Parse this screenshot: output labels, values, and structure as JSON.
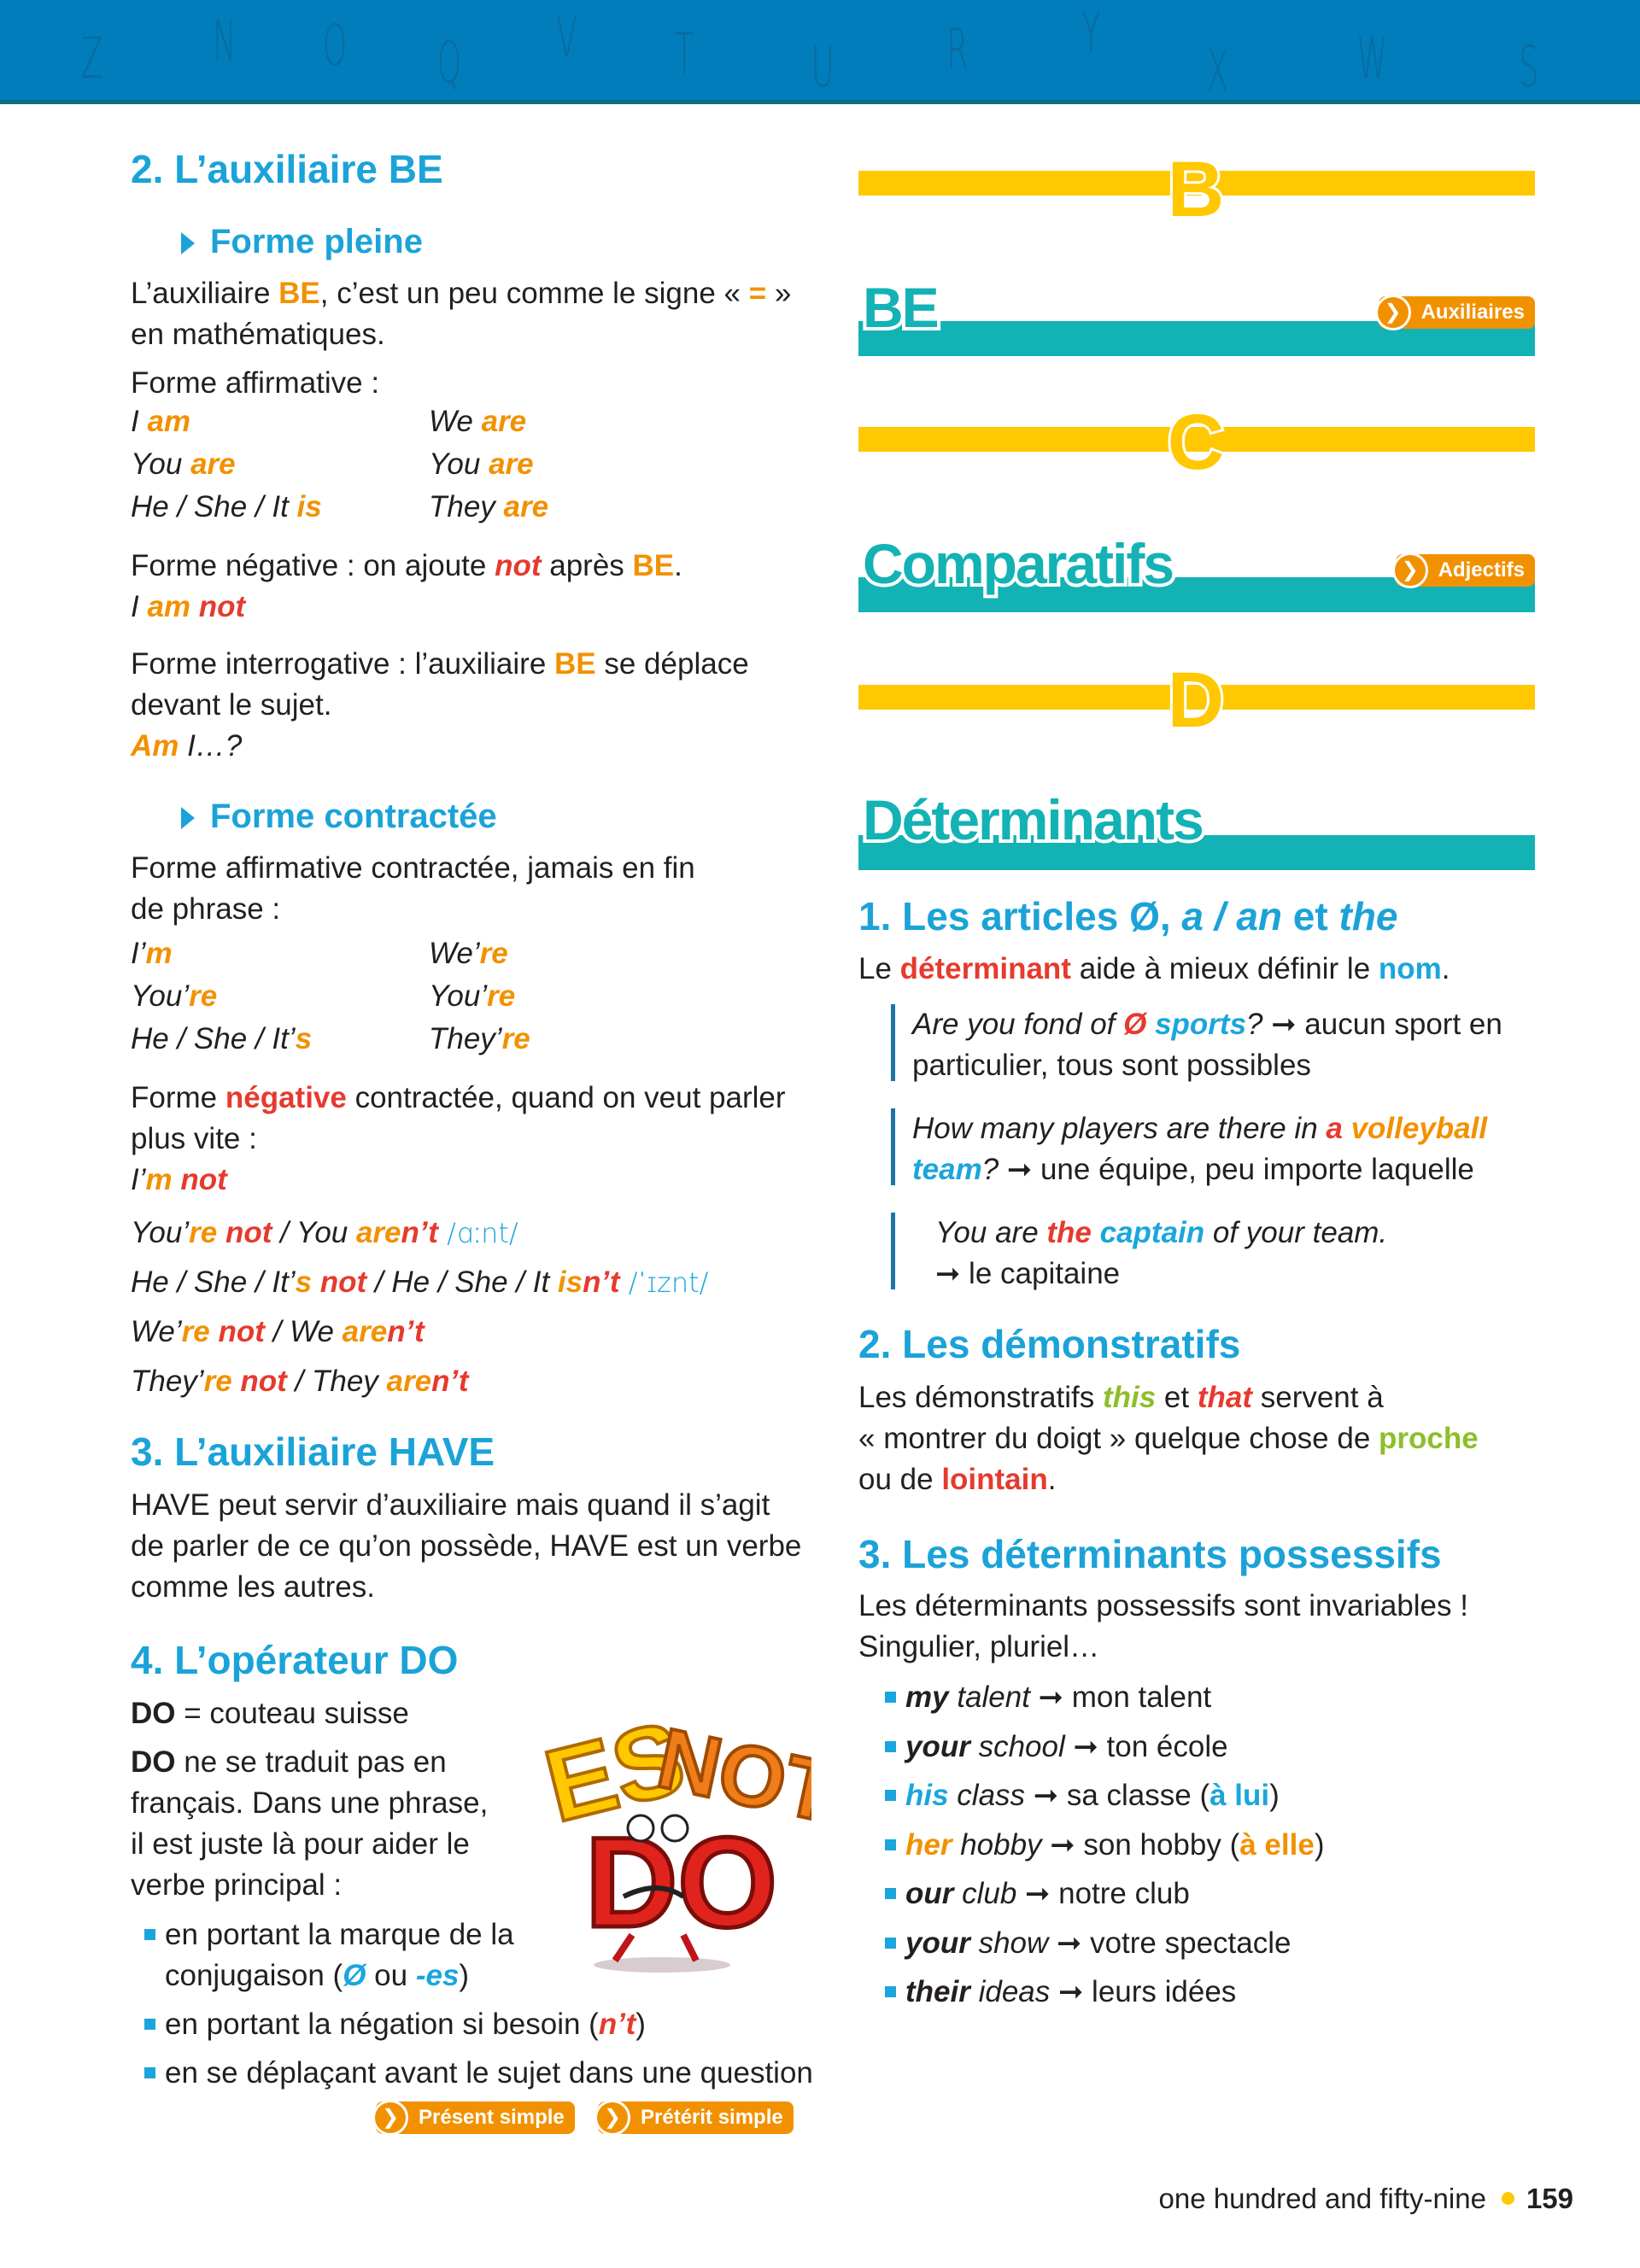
{
  "colors": {
    "orange": "#f29100",
    "red": "#e63a2e",
    "blue": "#1aa6dc",
    "teal": "#13b2b5",
    "yellow": "#ffc800",
    "header": "#007dba",
    "green": "#8cbf2a"
  },
  "header": {
    "letters": [
      "Z",
      "N",
      "O",
      "Q",
      "V",
      "T",
      "U",
      "R",
      "Y",
      "X",
      "W",
      "S"
    ]
  },
  "left": {
    "h_be": "2. L’auxiliaire BE",
    "forme_pleine": "Forme pleine",
    "p_intro": [
      [
        {
          "t": "L’auxiliaire "
        },
        {
          "t": "BE",
          "s": "o b"
        },
        {
          "t": ", c’est un peu comme le signe « "
        },
        {
          "t": "=",
          "s": "o b"
        },
        {
          "t": " »"
        }
      ],
      [
        {
          "t": "en mathématiques."
        }
      ]
    ],
    "aff_label": [
      [
        {
          "t": "Forme affirmative :"
        }
      ]
    ],
    "aff_table": [
      [
        [
          {
            "t": "I",
            "s": "i"
          },
          {
            "t": " am",
            "s": "o b i"
          }
        ],
        [
          {
            "t": "We",
            "s": "i"
          },
          {
            "t": " are",
            "s": "o b i"
          }
        ]
      ],
      [
        [
          {
            "t": "You",
            "s": "i"
          },
          {
            "t": " are",
            "s": "o b i"
          }
        ],
        [
          {
            "t": "You",
            "s": "i"
          },
          {
            "t": " are",
            "s": "o b i"
          }
        ]
      ],
      [
        [
          {
            "t": "He / She / It",
            "s": "i"
          },
          {
            "t": " is",
            "s": "o b i"
          }
        ],
        [
          {
            "t": "They",
            "s": "i"
          },
          {
            "t": " are",
            "s": "o b i"
          }
        ]
      ]
    ],
    "p_neg": [
      [
        {
          "t": "Forme négative : on ajoute "
        },
        {
          "t": "not",
          "s": "r b i"
        },
        {
          "t": " après "
        },
        {
          "t": "BE",
          "s": "o b"
        },
        {
          "t": "."
        }
      ],
      [
        {
          "t": "I",
          "s": "i"
        },
        {
          "t": " am",
          "s": "o b i"
        },
        {
          "t": " not",
          "s": "r b i"
        }
      ]
    ],
    "p_interro": [
      [
        {
          "t": "Forme interrogative : l’auxiliaire "
        },
        {
          "t": "BE",
          "s": "o b"
        },
        {
          "t": " se déplace"
        }
      ],
      [
        {
          "t": "devant le sujet."
        }
      ],
      [
        {
          "t": "Am",
          "s": "o b i"
        },
        {
          "t": " I…?",
          "s": "i"
        }
      ]
    ],
    "forme_contractee": "Forme contractée",
    "p_contr": [
      [
        {
          "t": "Forme affirmative contractée, jamais en fin"
        }
      ],
      [
        {
          "t": "de phrase :"
        }
      ]
    ],
    "contr_table": [
      [
        [
          {
            "t": "I’",
            "s": "i"
          },
          {
            "t": "m",
            "s": "o b i"
          }
        ],
        [
          {
            "t": "We’",
            "s": "i"
          },
          {
            "t": "re",
            "s": "o b i"
          }
        ]
      ],
      [
        [
          {
            "t": "You’",
            "s": "i"
          },
          {
            "t": "re",
            "s": "o b i"
          }
        ],
        [
          {
            "t": "You’",
            "s": "i"
          },
          {
            "t": "re",
            "s": "o b i"
          }
        ]
      ],
      [
        [
          {
            "t": "He / She / It’",
            "s": "i"
          },
          {
            "t": "s",
            "s": "o b i"
          }
        ],
        [
          {
            "t": "They’",
            "s": "i"
          },
          {
            "t": "re",
            "s": "o b i"
          }
        ]
      ]
    ],
    "p_neg_contr": [
      [
        {
          "t": "Forme "
        },
        {
          "t": "négative",
          "s": "r b"
        },
        {
          "t": " contractée, quand on veut parler"
        }
      ],
      [
        {
          "t": "plus vite :"
        }
      ],
      [
        {
          "t": "I’",
          "s": "i"
        },
        {
          "t": "m",
          "s": "o b i"
        },
        {
          "t": " not",
          "s": "r b i"
        }
      ]
    ],
    "neg_lines": [
      [
        {
          "t": "You’",
          "s": "i"
        },
        {
          "t": "re",
          "s": "o b i"
        },
        {
          "t": " not",
          "s": "r b i"
        },
        {
          "t": " / You ",
          "s": "i"
        },
        {
          "t": "are",
          "s": "o b i"
        },
        {
          "t": "n’t",
          "s": "r b i"
        },
        {
          "t": " /ɑːnt/",
          "s": "ph"
        }
      ],
      [
        {
          "t": "He / She / It’",
          "s": "i"
        },
        {
          "t": "s",
          "s": "o b i"
        },
        {
          "t": " not",
          "s": "r b i"
        },
        {
          "t": " / He / She / It ",
          "s": "i"
        },
        {
          "t": "is",
          "s": "o b i"
        },
        {
          "t": "n’t",
          "s": "r b i"
        },
        {
          "t": " /ˈɪznt/",
          "s": "ph"
        }
      ],
      [
        {
          "t": "We’",
          "s": "i"
        },
        {
          "t": "re",
          "s": "o b i"
        },
        {
          "t": " not",
          "s": "r b i"
        },
        {
          "t": " / We ",
          "s": "i"
        },
        {
          "t": "are",
          "s": "o b i"
        },
        {
          "t": "n’t",
          "s": "r b i"
        }
      ],
      [
        {
          "t": "They’",
          "s": "i"
        },
        {
          "t": "re",
          "s": "o b i"
        },
        {
          "t": " not",
          "s": "r b i"
        },
        {
          "t": " / They ",
          "s": "i"
        },
        {
          "t": "are",
          "s": "o b i"
        },
        {
          "t": "n’t",
          "s": "r b i"
        }
      ]
    ],
    "h_have": "3. L’auxiliaire HAVE",
    "p_have": [
      [
        {
          "t": "HAVE peut servir d’auxiliaire mais quand il s’agit"
        }
      ],
      [
        {
          "t": "de parler de ce qu’on possède, HAVE est un verbe"
        }
      ],
      [
        {
          "t": "comme les autres."
        }
      ]
    ],
    "h_do": "4. L’opérateur DO",
    "p_do1": [
      [
        {
          "t": "DO",
          "s": "b"
        },
        {
          "t": " = couteau suisse"
        }
      ]
    ],
    "p_do2": [
      [
        {
          "t": "DO",
          "s": "b"
        },
        {
          "t": " ne se traduit pas en"
        }
      ],
      [
        {
          "t": "français. Dans une phrase,"
        }
      ],
      [
        {
          "t": "il est juste là pour aider le"
        }
      ],
      [
        {
          "t": "verbe principal :"
        }
      ]
    ],
    "do_bullets": [
      [
        [
          {
            "t": "en portant la marque de la"
          }
        ],
        [
          {
            "t": "conjugaison ("
          },
          {
            "t": "Ø",
            "s": "bl b i"
          },
          {
            "t": " ou "
          },
          {
            "t": "-es",
            "s": "bl b i"
          },
          {
            "t": ")"
          }
        ]
      ],
      [
        [
          {
            "t": "en portant la négation si besoin ("
          },
          {
            "t": "n’t",
            "s": "r b i"
          },
          {
            "t": ")"
          }
        ]
      ],
      [
        [
          {
            "t": "en se déplaçant avant le sujet dans une question"
          }
        ]
      ]
    ],
    "illustration": {
      "lettering": [
        "ES",
        "NOT",
        "DO"
      ]
    },
    "buttons": [
      "Présent simple",
      "Prétérit simple"
    ]
  },
  "right": {
    "letters": [
      "B",
      "C",
      "D"
    ],
    "be_title": "BE",
    "be_badge": "Auxiliaires",
    "comp_title": "Comparatifs",
    "comp_badge": "Adjectifs",
    "det_title": "Déterminants",
    "h_articles": [
      {
        "t": "1. Les articles Ø, "
      },
      {
        "t": "a / an",
        "s": "i"
      },
      {
        "t": " et "
      },
      {
        "t": "the",
        "s": "i"
      }
    ],
    "p_articles": [
      [
        {
          "t": "Le "
        },
        {
          "t": "déterminant",
          "s": "r b"
        },
        {
          "t": " aide à mieux définir le "
        },
        {
          "t": "nom",
          "s": "bl b"
        },
        {
          "t": "."
        }
      ]
    ],
    "quotes": [
      [
        [
          {
            "t": "Are you fond of ",
            "s": "i"
          },
          {
            "t": "Ø",
            "s": "r b i"
          },
          {
            "t": " sports",
            "s": "bl b i"
          },
          {
            "t": "?",
            "s": "i"
          },
          {
            "t": " ➞ aucun sport en"
          }
        ],
        [
          {
            "t": "particulier, tous sont possibles"
          }
        ]
      ],
      [
        [
          {
            "t": "How many players are there in ",
            "s": "i"
          },
          {
            "t": "a",
            "s": "r b i"
          },
          {
            "t": " volleyball",
            "s": "o b i"
          }
        ],
        [
          {
            "t": "team",
            "s": "bl b i"
          },
          {
            "t": "?",
            "s": "i"
          },
          {
            "t": " ➞ une équipe, peu importe laquelle"
          }
        ]
      ],
      [
        [
          {
            "t": "You are ",
            "s": "i"
          },
          {
            "t": "the",
            "s": "r b i"
          },
          {
            "t": " captain",
            "s": "bl b i"
          },
          {
            "t": " of your team.",
            "s": "i"
          }
        ],
        [
          {
            "t": "➞ le capitaine"
          }
        ]
      ]
    ],
    "h_demo": "2. Les démonstratifs",
    "p_demo": [
      [
        {
          "t": "Les démonstratifs "
        },
        {
          "t": "this",
          "s": "g b i"
        },
        {
          "t": " et "
        },
        {
          "t": "that",
          "s": "r b i"
        },
        {
          "t": " servent à"
        }
      ],
      [
        {
          "t": "« montrer du doigt » quelque chose de "
        },
        {
          "t": "proche",
          "s": "g b"
        }
      ],
      [
        {
          "t": "ou de "
        },
        {
          "t": "lointain",
          "s": "r b"
        },
        {
          "t": "."
        }
      ]
    ],
    "h_poss": "3. Les déterminants possessifs",
    "p_poss": [
      [
        {
          "t": "Les déterminants possessifs sont invariables !"
        }
      ],
      [
        {
          "t": "Singulier, pluriel…"
        }
      ]
    ],
    "poss_list": [
      [
        {
          "t": "my",
          "s": "b i"
        },
        {
          "t": " talent",
          "s": "i"
        },
        {
          "t": " ➞ mon talent"
        }
      ],
      [
        {
          "t": "your",
          "s": "b i"
        },
        {
          "t": " school",
          "s": "i"
        },
        {
          "t": " ➞ ton école"
        }
      ],
      [
        {
          "t": "his",
          "s": "bl b i"
        },
        {
          "t": " class",
          "s": "i"
        },
        {
          "t": " ➞ sa classe ("
        },
        {
          "t": "à lui",
          "s": "bl b"
        },
        {
          "t": ")"
        }
      ],
      [
        {
          "t": "her",
          "s": "o b i"
        },
        {
          "t": " hobby",
          "s": "i"
        },
        {
          "t": " ➞ son hobby ("
        },
        {
          "t": "à elle",
          "s": "o b"
        },
        {
          "t": ")"
        }
      ],
      [
        {
          "t": "our",
          "s": "b i"
        },
        {
          "t": " club",
          "s": "i"
        },
        {
          "t": " ➞ notre club"
        }
      ],
      [
        {
          "t": "your",
          "s": "b i"
        },
        {
          "t": " show",
          "s": "i"
        },
        {
          "t": " ➞ votre spectacle"
        }
      ],
      [
        {
          "t": "their",
          "s": "b i"
        },
        {
          "t": " ideas",
          "s": "i"
        },
        {
          "t": " ➞ leurs idées"
        }
      ]
    ]
  },
  "footer": {
    "text": "one hundred and fifty-nine",
    "page": "159"
  }
}
